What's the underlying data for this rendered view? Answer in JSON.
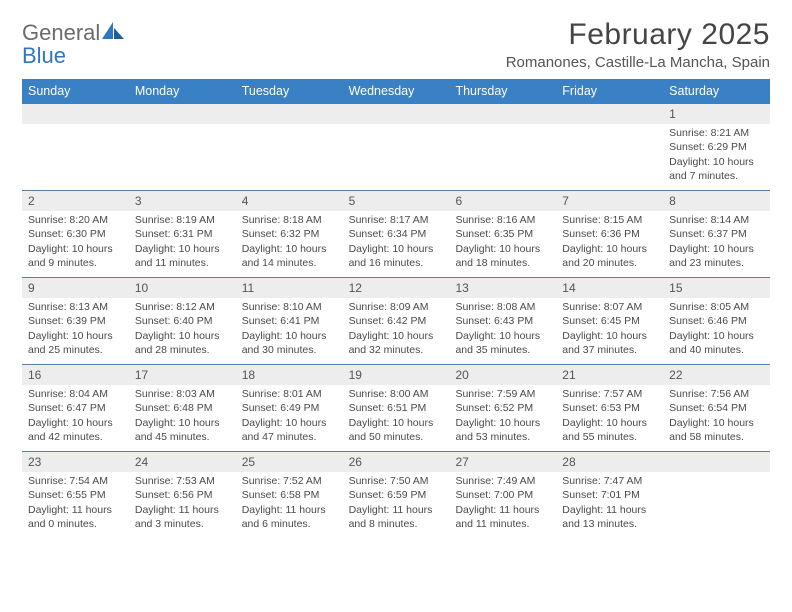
{
  "brand": {
    "name1": "General",
    "name2": "Blue",
    "accent": "#2f78bd",
    "text_color": "#6b6b6b"
  },
  "title": "February 2025",
  "location": "Romanones, Castille-La Mancha, Spain",
  "header_bg": "#3a80c4",
  "header_text": "#ffffff",
  "daynum_bg": "#ededed",
  "rule_color": "#5c7fa3",
  "text_color": "#4a4a4a",
  "font_family": "Arial, Helvetica, sans-serif",
  "title_fontsize": 30,
  "location_fontsize": 15,
  "dayhead_fontsize": 12.5,
  "cell_fontsize": 10.5,
  "day_names": [
    "Sunday",
    "Monday",
    "Tuesday",
    "Wednesday",
    "Thursday",
    "Friday",
    "Saturday"
  ],
  "weeks": [
    [
      {
        "blank": true
      },
      {
        "blank": true
      },
      {
        "blank": true
      },
      {
        "blank": true
      },
      {
        "blank": true
      },
      {
        "blank": true
      },
      {
        "n": "1",
        "sr": "Sunrise: 8:21 AM",
        "ss": "Sunset: 6:29 PM",
        "d1": "Daylight: 10 hours",
        "d2": "and 7 minutes."
      }
    ],
    [
      {
        "n": "2",
        "sr": "Sunrise: 8:20 AM",
        "ss": "Sunset: 6:30 PM",
        "d1": "Daylight: 10 hours",
        "d2": "and 9 minutes."
      },
      {
        "n": "3",
        "sr": "Sunrise: 8:19 AM",
        "ss": "Sunset: 6:31 PM",
        "d1": "Daylight: 10 hours",
        "d2": "and 11 minutes."
      },
      {
        "n": "4",
        "sr": "Sunrise: 8:18 AM",
        "ss": "Sunset: 6:32 PM",
        "d1": "Daylight: 10 hours",
        "d2": "and 14 minutes."
      },
      {
        "n": "5",
        "sr": "Sunrise: 8:17 AM",
        "ss": "Sunset: 6:34 PM",
        "d1": "Daylight: 10 hours",
        "d2": "and 16 minutes."
      },
      {
        "n": "6",
        "sr": "Sunrise: 8:16 AM",
        "ss": "Sunset: 6:35 PM",
        "d1": "Daylight: 10 hours",
        "d2": "and 18 minutes."
      },
      {
        "n": "7",
        "sr": "Sunrise: 8:15 AM",
        "ss": "Sunset: 6:36 PM",
        "d1": "Daylight: 10 hours",
        "d2": "and 20 minutes."
      },
      {
        "n": "8",
        "sr": "Sunrise: 8:14 AM",
        "ss": "Sunset: 6:37 PM",
        "d1": "Daylight: 10 hours",
        "d2": "and 23 minutes."
      }
    ],
    [
      {
        "n": "9",
        "sr": "Sunrise: 8:13 AM",
        "ss": "Sunset: 6:39 PM",
        "d1": "Daylight: 10 hours",
        "d2": "and 25 minutes."
      },
      {
        "n": "10",
        "sr": "Sunrise: 8:12 AM",
        "ss": "Sunset: 6:40 PM",
        "d1": "Daylight: 10 hours",
        "d2": "and 28 minutes."
      },
      {
        "n": "11",
        "sr": "Sunrise: 8:10 AM",
        "ss": "Sunset: 6:41 PM",
        "d1": "Daylight: 10 hours",
        "d2": "and 30 minutes."
      },
      {
        "n": "12",
        "sr": "Sunrise: 8:09 AM",
        "ss": "Sunset: 6:42 PM",
        "d1": "Daylight: 10 hours",
        "d2": "and 32 minutes."
      },
      {
        "n": "13",
        "sr": "Sunrise: 8:08 AM",
        "ss": "Sunset: 6:43 PM",
        "d1": "Daylight: 10 hours",
        "d2": "and 35 minutes."
      },
      {
        "n": "14",
        "sr": "Sunrise: 8:07 AM",
        "ss": "Sunset: 6:45 PM",
        "d1": "Daylight: 10 hours",
        "d2": "and 37 minutes."
      },
      {
        "n": "15",
        "sr": "Sunrise: 8:05 AM",
        "ss": "Sunset: 6:46 PM",
        "d1": "Daylight: 10 hours",
        "d2": "and 40 minutes."
      }
    ],
    [
      {
        "n": "16",
        "sr": "Sunrise: 8:04 AM",
        "ss": "Sunset: 6:47 PM",
        "d1": "Daylight: 10 hours",
        "d2": "and 42 minutes."
      },
      {
        "n": "17",
        "sr": "Sunrise: 8:03 AM",
        "ss": "Sunset: 6:48 PM",
        "d1": "Daylight: 10 hours",
        "d2": "and 45 minutes."
      },
      {
        "n": "18",
        "sr": "Sunrise: 8:01 AM",
        "ss": "Sunset: 6:49 PM",
        "d1": "Daylight: 10 hours",
        "d2": "and 47 minutes."
      },
      {
        "n": "19",
        "sr": "Sunrise: 8:00 AM",
        "ss": "Sunset: 6:51 PM",
        "d1": "Daylight: 10 hours",
        "d2": "and 50 minutes."
      },
      {
        "n": "20",
        "sr": "Sunrise: 7:59 AM",
        "ss": "Sunset: 6:52 PM",
        "d1": "Daylight: 10 hours",
        "d2": "and 53 minutes."
      },
      {
        "n": "21",
        "sr": "Sunrise: 7:57 AM",
        "ss": "Sunset: 6:53 PM",
        "d1": "Daylight: 10 hours",
        "d2": "and 55 minutes."
      },
      {
        "n": "22",
        "sr": "Sunrise: 7:56 AM",
        "ss": "Sunset: 6:54 PM",
        "d1": "Daylight: 10 hours",
        "d2": "and 58 minutes."
      }
    ],
    [
      {
        "n": "23",
        "sr": "Sunrise: 7:54 AM",
        "ss": "Sunset: 6:55 PM",
        "d1": "Daylight: 11 hours",
        "d2": "and 0 minutes."
      },
      {
        "n": "24",
        "sr": "Sunrise: 7:53 AM",
        "ss": "Sunset: 6:56 PM",
        "d1": "Daylight: 11 hours",
        "d2": "and 3 minutes."
      },
      {
        "n": "25",
        "sr": "Sunrise: 7:52 AM",
        "ss": "Sunset: 6:58 PM",
        "d1": "Daylight: 11 hours",
        "d2": "and 6 minutes."
      },
      {
        "n": "26",
        "sr": "Sunrise: 7:50 AM",
        "ss": "Sunset: 6:59 PM",
        "d1": "Daylight: 11 hours",
        "d2": "and 8 minutes."
      },
      {
        "n": "27",
        "sr": "Sunrise: 7:49 AM",
        "ss": "Sunset: 7:00 PM",
        "d1": "Daylight: 11 hours",
        "d2": "and 11 minutes."
      },
      {
        "n": "28",
        "sr": "Sunrise: 7:47 AM",
        "ss": "Sunset: 7:01 PM",
        "d1": "Daylight: 11 hours",
        "d2": "and 13 minutes."
      },
      {
        "blank": true
      }
    ]
  ]
}
